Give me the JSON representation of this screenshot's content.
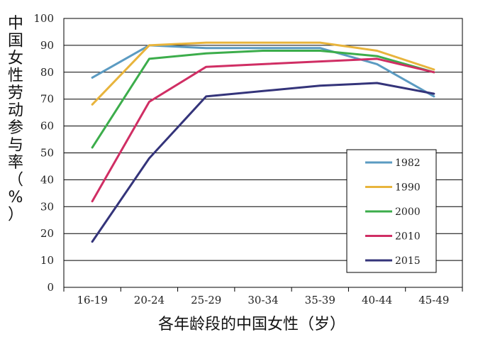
{
  "chart_data": {
    "type": "line",
    "title": "",
    "xlabel": "各年龄段的中国女性（岁）",
    "ylabel": "中国女性劳动参与率（%）",
    "categories": [
      "16-19",
      "20-24",
      "25-29",
      "30-34",
      "35-39",
      "40-44",
      "45-49"
    ],
    "ylim": [
      0,
      100
    ],
    "yticks": [
      0,
      10,
      20,
      30,
      40,
      50,
      60,
      70,
      80,
      90,
      100
    ],
    "grid": true,
    "legend_position": "lower-right",
    "series": [
      {
        "name": "1982",
        "color": "#5b9bc2",
        "values": [
          78,
          90,
          89,
          89,
          89,
          83,
          71
        ]
      },
      {
        "name": "1990",
        "color": "#e8b43c",
        "values": [
          68,
          90,
          91,
          91,
          91,
          88,
          81
        ]
      },
      {
        "name": "2000",
        "color": "#3cad4b",
        "values": [
          52,
          85,
          87,
          88,
          88,
          86,
          80
        ]
      },
      {
        "name": "2010",
        "color": "#d02e64",
        "values": [
          32,
          69,
          82,
          83,
          84,
          85,
          80
        ]
      },
      {
        "name": "2015",
        "color": "#34347a",
        "values": [
          17,
          48,
          71,
          73,
          75,
          76,
          72
        ]
      }
    ]
  }
}
